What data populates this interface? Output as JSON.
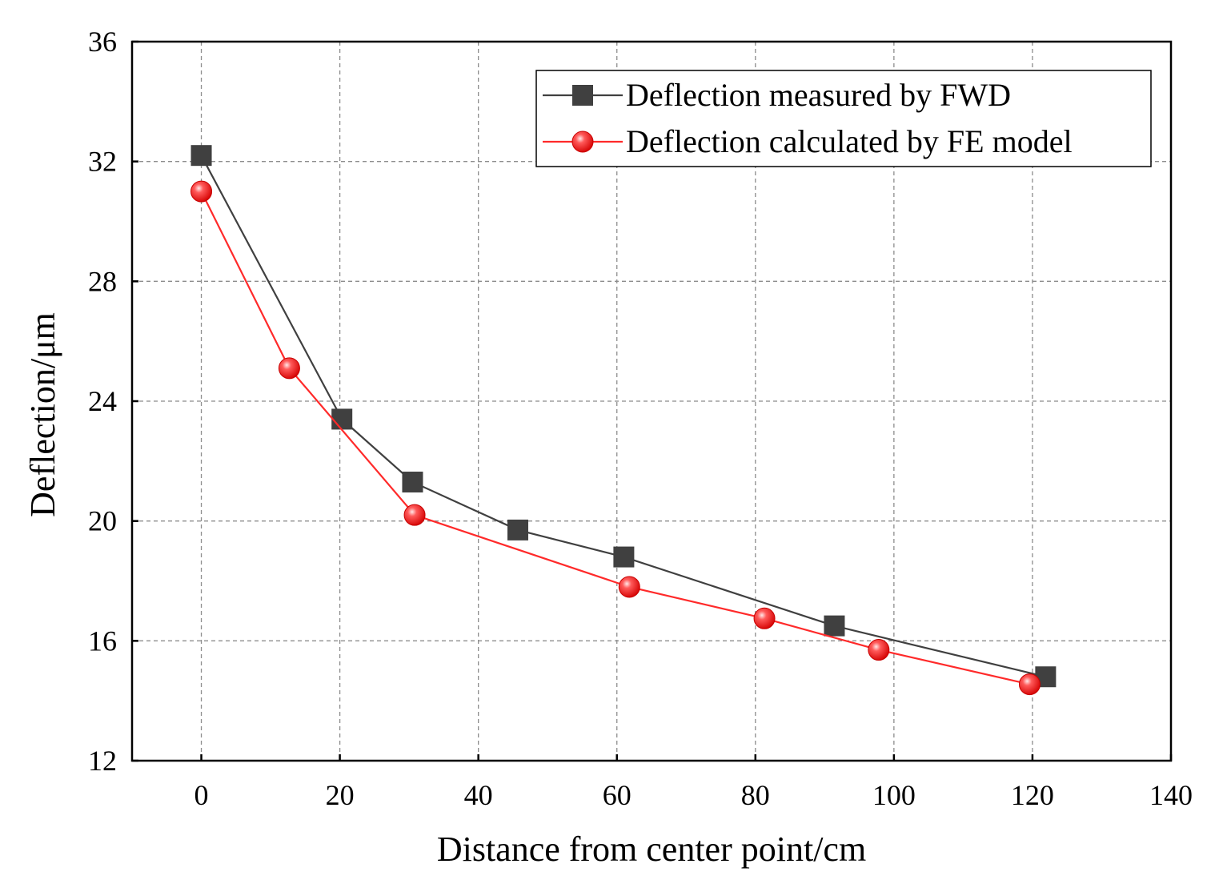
{
  "chart_data": {
    "type": "line",
    "title": "",
    "xlabel": "Distance from center point/cm",
    "ylabel": "Deflection/μm",
    "xlim": [
      -10,
      140
    ],
    "ylim": [
      12,
      36
    ],
    "xticks": [
      0,
      20,
      40,
      60,
      80,
      100,
      120,
      140
    ],
    "yticks": [
      12,
      16,
      20,
      24,
      28,
      32,
      36
    ],
    "grid": true,
    "legend_position": "top-right",
    "series": [
      {
        "name": "Deflection measured by FWD",
        "color": "#404040",
        "marker": "square",
        "x": [
          0,
          20.3,
          30.5,
          45.7,
          61,
          91.4,
          121.9
        ],
        "y": [
          32.2,
          23.4,
          21.3,
          19.7,
          18.8,
          16.5,
          14.8
        ]
      },
      {
        "name": "Deflection calculated by FE model",
        "color": "#ff2a2a",
        "marker": "circle",
        "x": [
          0,
          12.7,
          30.8,
          61.8,
          81.3,
          97.8,
          119.6
        ],
        "y": [
          31.0,
          25.1,
          20.2,
          17.8,
          16.75,
          15.7,
          14.55
        ]
      }
    ]
  }
}
